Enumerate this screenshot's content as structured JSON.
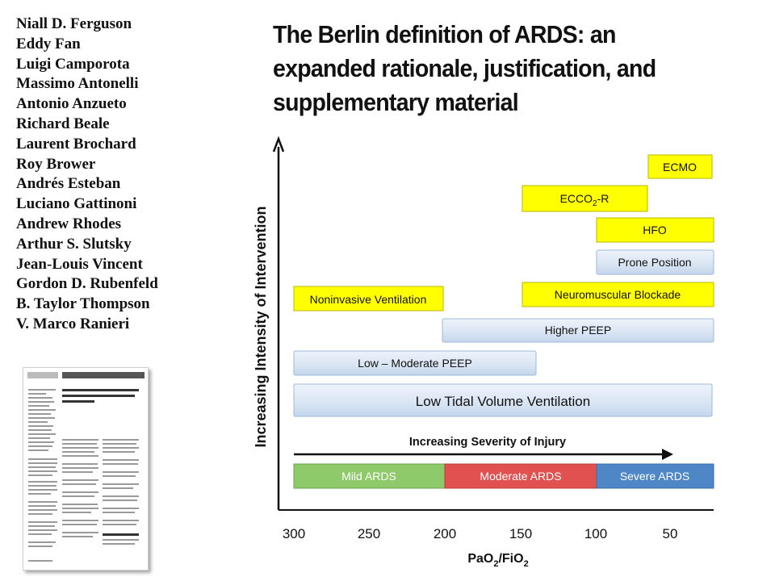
{
  "authors": [
    "Niall D. Ferguson",
    "Eddy Fan",
    "Luigi Camporota",
    "Massimo Antonelli",
    "Antonio Anzueto",
    "Richard Beale",
    "Laurent Brochard",
    "Roy Brower",
    "Andrés Esteban",
    "Luciano Gattinoni",
    "Andrew Rhodes",
    "Arthur S. Slutsky",
    "Jean-Louis Vincent",
    "Gordon D. Rubenfeld",
    "B. Taylor Thompson",
    "V. Marco Ranieri"
  ],
  "title": "The Berlin definition of ARDS: an expanded rationale, justification, and supplementary material",
  "diagram": {
    "y_axis_label": "Increasing Intensity of Intervention",
    "x_axis_label_main": "PaO",
    "x_axis_label_sub1": "2",
    "x_axis_label_mid": "/FiO",
    "x_axis_label_sub2": "2",
    "severity_arrow_label": "Increasing Severity of Injury",
    "x_ticks": [
      "300",
      "250",
      "200",
      "150",
      "100",
      "50"
    ],
    "interventions": {
      "ecmo": "ECMO",
      "ecco2r_main": "ECCO",
      "ecco2r_sub": "2",
      "ecco2r_tail": "-R",
      "hfo": "HFO",
      "prone": "Prone Position",
      "neuromuscular": "Neuromuscular Blockade",
      "niv": "Noninvasive Ventilation",
      "higher_peep": "Higher PEEP",
      "low_moderate_peep": "Low – Moderate PEEP",
      "low_tidal": "Low Tidal Volume Ventilation"
    },
    "severity": {
      "mild": "Mild ARDS",
      "moderate": "Moderate ARDS",
      "severe": "Severe ARDS"
    },
    "colors": {
      "yellow": "#ffff00",
      "blue_box": "#d7e4f4",
      "mild": "#8fca6a",
      "moderate": "#e0514f",
      "severe": "#4f86c6"
    }
  }
}
